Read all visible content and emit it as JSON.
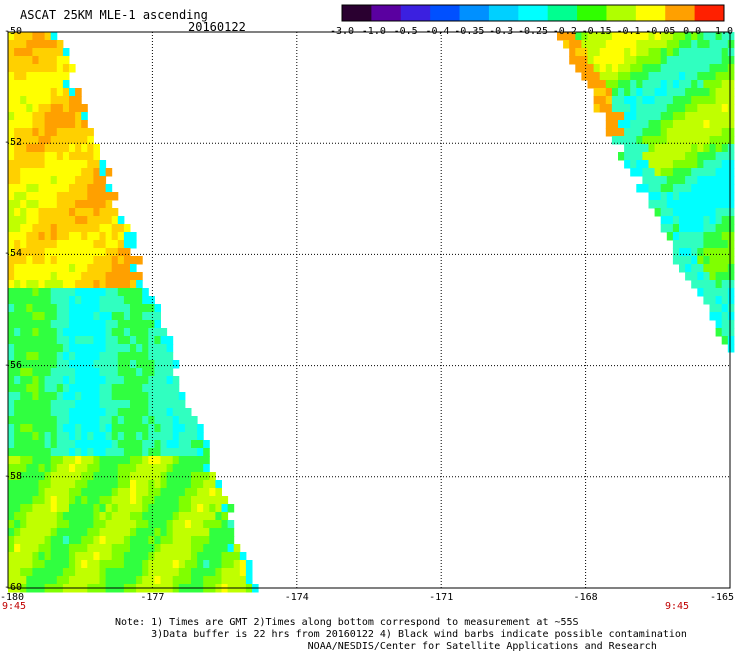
{
  "header": {
    "title": "ASCAT 25KM MLE-1 ascending",
    "date": "20160122"
  },
  "colorbar": {
    "labels": [
      "-3.0",
      "-1.0",
      "-0.5",
      "-0.4",
      "-0.35",
      "-0.3",
      "-0.25",
      "-0.2",
      "-0.15",
      "-0.1",
      "-0.05",
      "0.0",
      "1.0"
    ],
    "colors": [
      "#2a0030",
      "#5a00a0",
      "#3b20e0",
      "#0050ff",
      "#0090ff",
      "#00d0ff",
      "#00ffff",
      "#00ff90",
      "#30ff00",
      "#b0ff00",
      "#ffff00",
      "#ffa000",
      "#ff2000"
    ]
  },
  "map": {
    "lat_labels": [
      "-50",
      "-52",
      "-54",
      "-56",
      "-58",
      "-60"
    ],
    "lon_labels": [
      "-180",
      "-177",
      "-174",
      "-171",
      "-168",
      "-165"
    ],
    "time_left": "9:45",
    "time_right": "9:45",
    "grid": {
      "lat_min": -60,
      "lat_max": -50,
      "lon_min": -180,
      "lon_max": -165
    }
  },
  "notes": {
    "line1": "Note: 1) Times are GMT 2)Times along bottom correspond to measurement at ~55S",
    "line2": "      3)Data buffer is 22 hrs from 20160122 4) Black wind barbs indicate possible contamination",
    "line3": "                                NOAA/NESDIS/Center for Satellite Applications and Research"
  }
}
